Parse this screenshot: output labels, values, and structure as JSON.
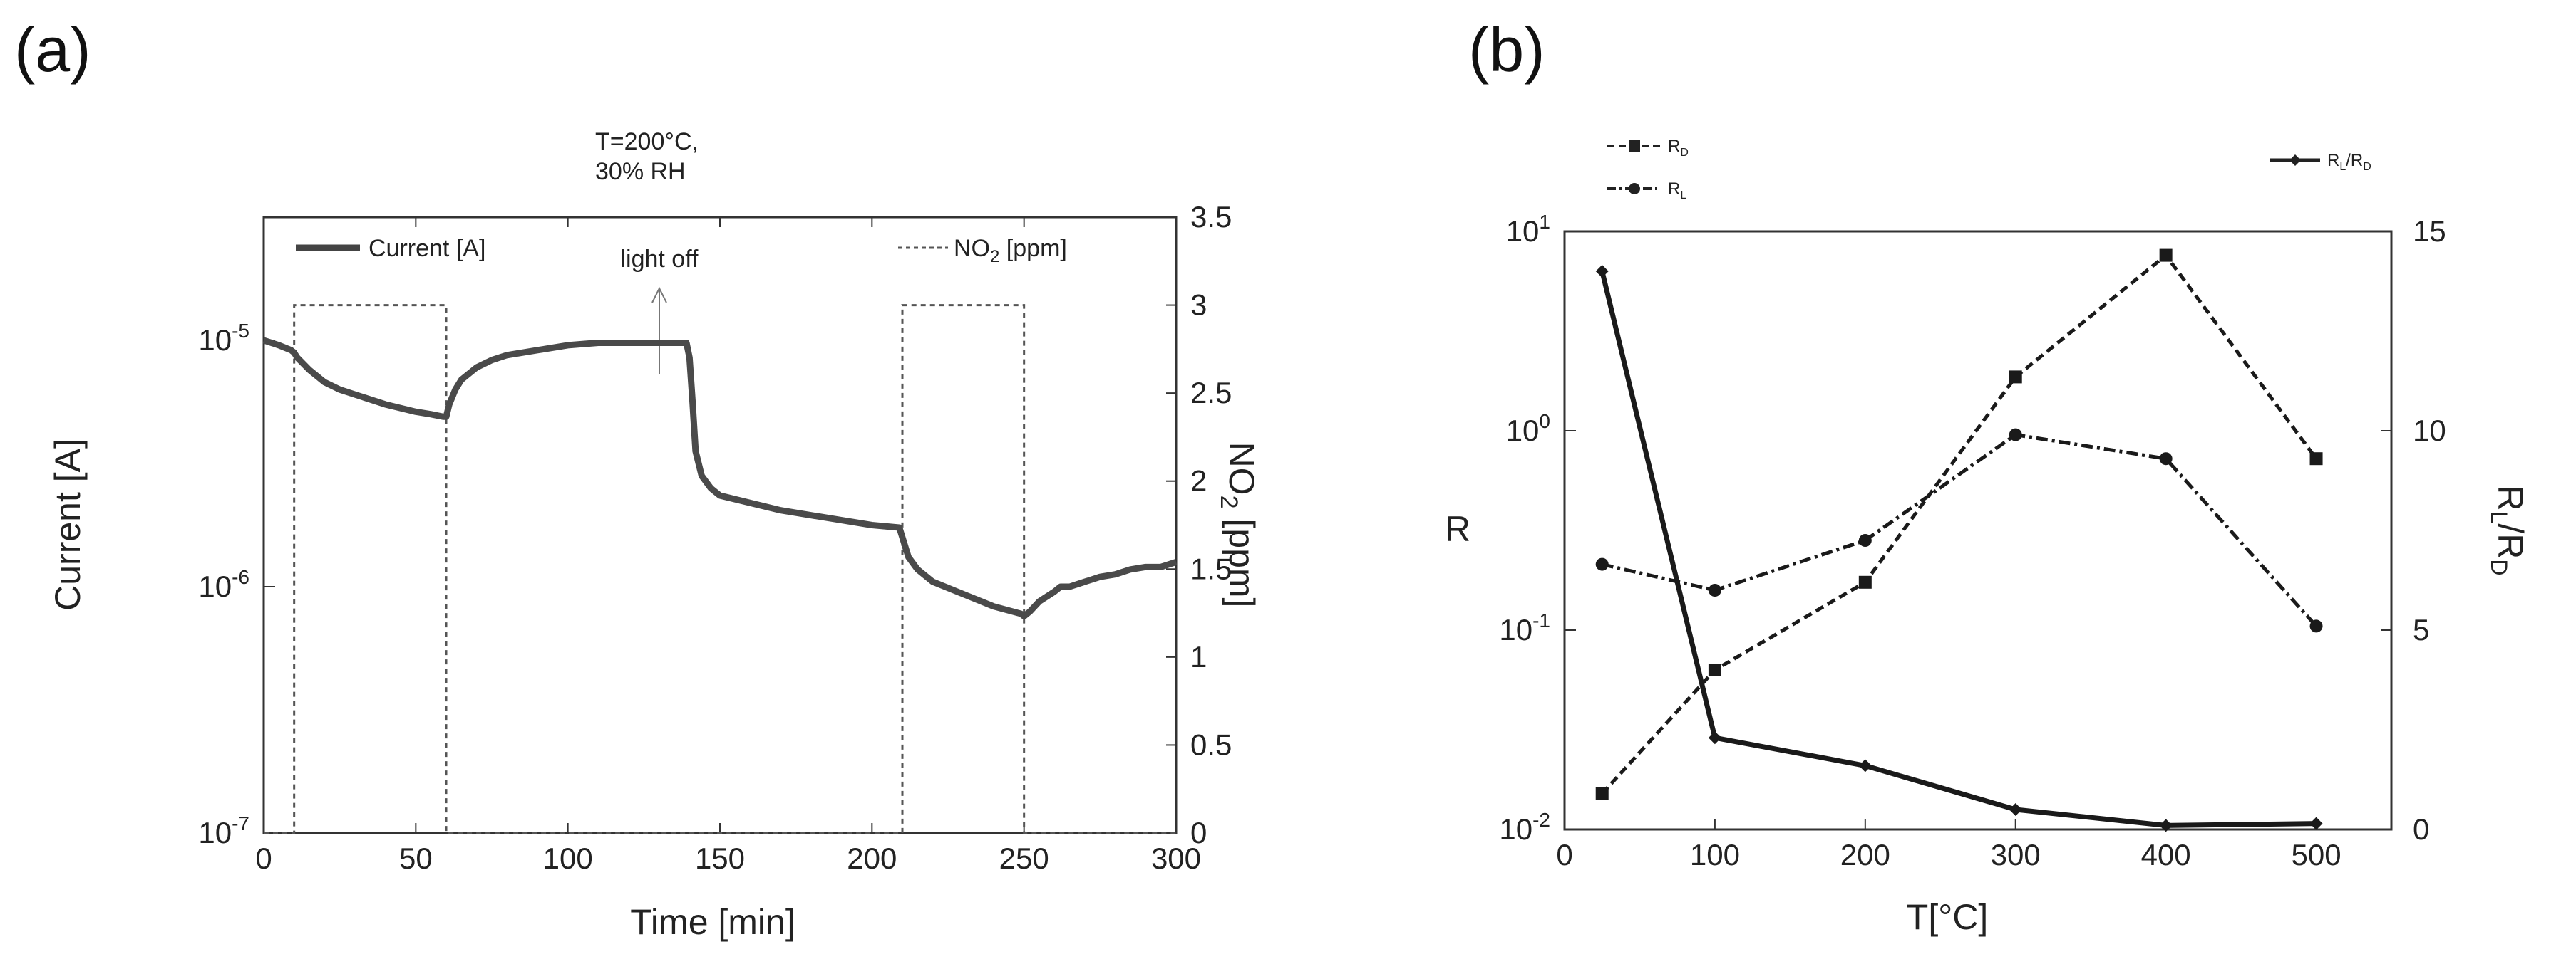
{
  "panels": {
    "a": {
      "label": "(a)"
    },
    "b": {
      "label": "(b)"
    }
  },
  "chart_data": [
    {
      "id": "a",
      "type": "line",
      "title": "T=200°C,",
      "subtitle": "30% RH",
      "xlabel": "Time [min]",
      "ylabel": "Current [A]",
      "y2label": "NO2 [ppm]",
      "y2label_base": "NO",
      "y2label_sub": "2",
      "y2label_rest": " [ppm]",
      "xlim": [
        0,
        300
      ],
      "ylim_log": [
        -7,
        -4.5
      ],
      "y2lim": [
        0,
        3.5
      ],
      "x_ticks": [
        "0",
        "50",
        "100",
        "150",
        "200",
        "250",
        "300"
      ],
      "x_tick_values": [
        0,
        50,
        100,
        150,
        200,
        250,
        300
      ],
      "y_ticks": [
        {
          "value": -7,
          "base": "10",
          "exp": "-7"
        },
        {
          "value": -6,
          "base": "10",
          "exp": "-6"
        },
        {
          "value": -5,
          "base": "10",
          "exp": "-5"
        }
      ],
      "y2_ticks": [
        "0",
        "0.5",
        "1",
        "1.5",
        "2",
        "2.5",
        "3",
        "3.5"
      ],
      "y2_tick_values": [
        0,
        0.5,
        1,
        1.5,
        2,
        2.5,
        3,
        3.5
      ],
      "annotation": {
        "text": "light off",
        "x": 140
      },
      "legend": {
        "current": "Current [A]",
        "no2_base": "NO",
        "no2_sub": "2",
        "no2_rest": " [ppm]"
      },
      "series": [
        {
          "name": "Current [A]",
          "style": "solid",
          "x": [
            0,
            5,
            9,
            10,
            11,
            15,
            20,
            25,
            30,
            40,
            50,
            55,
            59,
            60,
            61,
            63,
            65,
            70,
            75,
            80,
            90,
            100,
            110,
            120,
            130,
            139,
            140,
            141,
            142,
            144,
            147,
            150,
            160,
            170,
            180,
            190,
            200,
            209,
            210,
            212,
            215,
            220,
            230,
            240,
            249,
            250,
            252,
            255,
            260,
            262,
            265,
            270,
            275,
            280,
            285,
            290,
            295,
            300
          ],
          "log10_y": [
            -5.0,
            -5.02,
            -5.04,
            -5.05,
            -5.07,
            -5.12,
            -5.17,
            -5.2,
            -5.22,
            -5.26,
            -5.29,
            -5.3,
            -5.31,
            -5.31,
            -5.26,
            -5.2,
            -5.16,
            -5.11,
            -5.08,
            -5.06,
            -5.04,
            -5.02,
            -5.01,
            -5.01,
            -5.01,
            -5.01,
            -5.07,
            -5.25,
            -5.45,
            -5.55,
            -5.6,
            -5.63,
            -5.66,
            -5.69,
            -5.71,
            -5.73,
            -5.75,
            -5.76,
            -5.8,
            -5.88,
            -5.93,
            -5.98,
            -6.03,
            -6.08,
            -6.11,
            -6.12,
            -6.1,
            -6.06,
            -6.02,
            -6.0,
            -6.0,
            -5.98,
            -5.96,
            -5.95,
            -5.93,
            -5.92,
            -5.92,
            -5.9
          ]
        },
        {
          "name": "NO2 [ppm]",
          "style": "dashed",
          "x": [
            0,
            10,
            10,
            60,
            60,
            210,
            210,
            250,
            250,
            300
          ],
          "y": [
            0,
            0,
            3,
            3,
            0,
            0,
            3,
            3,
            0,
            0
          ]
        }
      ]
    },
    {
      "id": "b",
      "type": "line",
      "xlabel": "T[°C]",
      "ylabel": "R",
      "y2label_base": "R",
      "y2label_sub1": "L",
      "y2label_mid": "/R",
      "y2label_sub2": "D",
      "xlim": [
        0,
        550
      ],
      "ylim_log": [
        -2,
        1
      ],
      "y2lim": [
        0,
        15
      ],
      "x_ticks": [
        "0",
        "100",
        "200",
        "300",
        "400",
        "500"
      ],
      "x_tick_values": [
        0,
        100,
        200,
        300,
        400,
        500
      ],
      "y_ticks": [
        {
          "value": -2,
          "base": "10",
          "exp": "-2"
        },
        {
          "value": -1,
          "base": "10",
          "exp": "-1"
        },
        {
          "value": 0,
          "base": "10",
          "exp": "0"
        },
        {
          "value": 1,
          "base": "10",
          "exp": "1"
        }
      ],
      "y2_ticks": [
        "0",
        "5",
        "10",
        "15"
      ],
      "y2_tick_values": [
        0,
        5,
        10,
        15
      ],
      "legend": {
        "rd_base": "R",
        "rd_sub": "D",
        "rl_base": "R",
        "rl_sub": "L",
        "ratio_base": "R",
        "ratio_sub1": "L",
        "ratio_mid": "/R",
        "ratio_sub2": "D"
      },
      "series": [
        {
          "name": "RD",
          "style": "dashed",
          "marker": "square",
          "axis": "left",
          "x": [
            25,
            100,
            200,
            300,
            400,
            500
          ],
          "log10_y": [
            -1.82,
            -1.2,
            -0.76,
            0.27,
            0.88,
            -0.14
          ]
        },
        {
          "name": "RL",
          "style": "dashdot",
          "marker": "circle",
          "axis": "left",
          "x": [
            25,
            100,
            200,
            300,
            400,
            500
          ],
          "log10_y": [
            -0.67,
            -0.8,
            -0.55,
            -0.02,
            -0.14,
            -0.98
          ]
        },
        {
          "name": "RL/RD",
          "style": "solid",
          "marker": "diamond",
          "axis": "right",
          "x": [
            25,
            100,
            200,
            300,
            400,
            500
          ],
          "y": [
            14,
            2.3,
            1.6,
            0.5,
            0.1,
            0.15
          ]
        }
      ]
    }
  ]
}
